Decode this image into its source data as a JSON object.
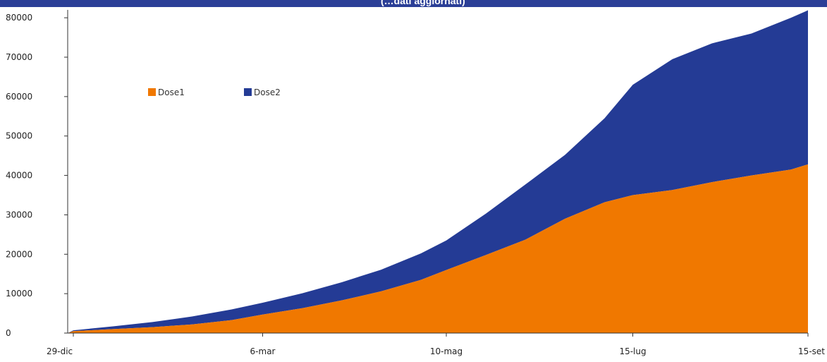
{
  "title": "(…dati aggiornati)",
  "chart_data": {
    "type": "area",
    "stacked": true,
    "x_ticks": [
      "29-dic",
      "6-mar",
      "10-mag",
      "15-lug",
      "15-set"
    ],
    "x": [
      "27-dic",
      "29-dic",
      "12-gen",
      "26-gen",
      "9-feb",
      "23-feb",
      "6-mar",
      "20-mar",
      "3-apr",
      "17-apr",
      "1-mag",
      "10-mag",
      "24-mag",
      "7-giu",
      "21-giu",
      "5-lug",
      "15-lug",
      "29-lug",
      "12-ago",
      "26-ago",
      "9-set",
      "15-set"
    ],
    "series": [
      {
        "name": "Dose1",
        "color": "#f07800",
        "values": [
          0,
          500,
          1000,
          1500,
          2200,
          3300,
          4700,
          6300,
          8300,
          10600,
          13500,
          16000,
          19800,
          23700,
          29000,
          33200,
          35000,
          36300,
          38300,
          40000,
          41500,
          42800
        ]
      },
      {
        "name": "Dose2",
        "color": "#243b95",
        "values": [
          0,
          200,
          700,
          1300,
          2000,
          2700,
          3000,
          3800,
          4600,
          5500,
          6700,
          7500,
          10500,
          14000,
          16200,
          21300,
          28000,
          33200,
          35200,
          36000,
          38500,
          39100
        ]
      }
    ],
    "y_ticks": [
      "0",
      "10000",
      "20000",
      "30000",
      "40000",
      "50000",
      "60000",
      "70000",
      "80000"
    ],
    "ylim": [
      0,
      82000
    ],
    "legend_position": "top-left",
    "grid": false
  }
}
